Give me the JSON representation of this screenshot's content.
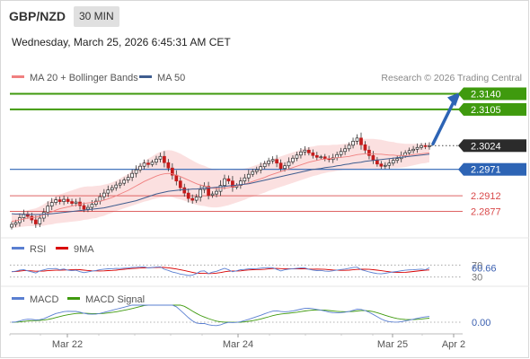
{
  "header": {
    "pair": "GBP/NZD",
    "timeframe": "30 MIN",
    "timestamp": "Wednesday, March 25, 2026 6:45:31 AM CET"
  },
  "credit": "Research © 2026 Trading Central",
  "legend": {
    "bollinger": "MA 20 + Bollinger Bands",
    "ma50": "MA 50",
    "rsi": "RSI",
    "rsi_ma": "9MA",
    "macd": "MACD",
    "macd_signal": "MACD Signal"
  },
  "colors": {
    "green": "#3f9a0e",
    "blue": "#2d64b5",
    "red": "#d9494a",
    "last": "#2b2b2b",
    "band": "#fadada",
    "ma20": "#f08080",
    "ma50": "#3f5d8f"
  },
  "chart_data": {
    "type": "candlestick",
    "price_range": [
      2.284,
      2.3155
    ],
    "levels": [
      {
        "label": "2.3140",
        "value": 2.314,
        "role": "resistance",
        "color": "#3f9a0e"
      },
      {
        "label": "2.3105",
        "value": 2.3105,
        "role": "resistance",
        "color": "#3f9a0e"
      },
      {
        "label": "2.3024",
        "value": 2.3024,
        "role": "last",
        "color": "#2b2b2b"
      },
      {
        "label": "2.2971",
        "value": 2.2971,
        "role": "pivot",
        "color": "#2d64b5"
      },
      {
        "label": "2.2912",
        "value": 2.2912,
        "role": "support",
        "color": "#d9494a"
      },
      {
        "label": "2.2877",
        "value": 2.2877,
        "role": "support",
        "color": "#d9494a"
      }
    ],
    "x_labels": [
      "Mar 22",
      "Mar 24",
      "Mar 25",
      "Apr 2"
    ],
    "rsi": {
      "value_label": "60.66",
      "value": 60.66,
      "levels": [
        "70",
        "30"
      ],
      "range": [
        20,
        80
      ]
    },
    "macd": {
      "value_label": "0.00",
      "value": 0.0
    },
    "closes": [
      2.2848,
      2.2852,
      2.2863,
      2.2871,
      2.2866,
      2.2858,
      2.2849,
      2.2862,
      2.2875,
      2.2889,
      2.2897,
      2.2903,
      2.2899,
      2.2904,
      2.2899,
      2.2895,
      2.2898,
      2.289,
      2.2882,
      2.2886,
      2.2893,
      2.29,
      2.291,
      2.2918,
      2.2925,
      2.293,
      2.2936,
      2.294,
      2.2947,
      2.2953,
      2.2962,
      2.297,
      2.2978,
      2.2985,
      2.2982,
      2.2987,
      2.2994,
      2.3,
      2.2986,
      2.2974,
      2.2958,
      2.2945,
      2.293,
      2.2918,
      2.2906,
      2.2902,
      2.2909,
      2.2926,
      2.2933,
      2.2913,
      2.2916,
      2.2922,
      2.2935,
      2.295,
      2.2945,
      2.2931,
      2.2935,
      2.2945,
      2.2952,
      2.296,
      2.2966,
      2.297,
      2.2977,
      2.2984,
      2.299,
      2.2993,
      2.2985,
      2.2973,
      2.2979,
      2.2988,
      2.2996,
      2.3003,
      2.301,
      2.3014,
      2.3008,
      2.3002,
      2.2998,
      2.2999,
      2.2995,
      2.2993,
      2.2997,
      2.3004,
      2.3011,
      2.3017,
      2.3025,
      2.3034,
      2.3041,
      2.3026,
      2.3014,
      2.3002,
      2.2992,
      2.2983,
      2.2978,
      2.298,
      2.2985,
      2.2991,
      2.2995,
      2.3002,
      2.3008,
      2.3013,
      2.3016,
      2.302,
      2.3024,
      2.3022,
      2.3024
    ],
    "ma20": [
      2.2855,
      2.2856,
      2.2858,
      2.286,
      2.2862,
      2.2863,
      2.2864,
      2.2866,
      2.2869,
      2.2873,
      2.2876,
      2.288,
      2.2883,
      2.2885,
      2.2887,
      2.2889,
      2.2891,
      2.2893,
      2.2895,
      2.2896,
      2.2897,
      2.2898,
      2.29,
      2.2902,
      2.2905,
      2.2908,
      2.2912,
      2.2916,
      2.292,
      2.2924,
      2.2929,
      2.2934,
      2.2939,
      2.2944,
      2.2948,
      2.2952,
      2.2956,
      2.2959,
      2.2961,
      2.2962,
      2.2961,
      2.2958,
      2.2955,
      2.2951,
      2.2947,
      2.2943,
      2.2939,
      2.2936,
      2.2934,
      2.2931,
      2.2929,
      2.2928,
      2.2928,
      2.2929,
      2.293,
      2.2932,
      2.2934,
      2.2936,
      2.2938,
      2.2941,
      2.2944,
      2.2947,
      2.295,
      2.2953,
      2.2957,
      2.296,
      2.2963,
      2.2966,
      2.2969,
      2.2972,
      2.2975,
      2.2978,
      2.2981,
      2.2984,
      2.2987,
      2.2989,
      2.2991,
      2.2993,
      2.2994,
      2.2995,
      2.2996,
      2.2997,
      2.2998,
      2.2999,
      2.3,
      2.3002,
      2.3004,
      2.3005,
      2.3006,
      2.3006,
      2.3006,
      2.3005,
      2.3005,
      2.3004,
      2.3003,
      2.3003,
      2.3002,
      2.3002,
      2.3002,
      2.3003,
      2.3004,
      2.3005,
      2.3006,
      2.3007,
      2.3008
    ],
    "ma50": [
      2.2872,
      2.2871,
      2.2871,
      2.287,
      2.287,
      2.287,
      2.287,
      2.287,
      2.2871,
      2.2871,
      2.2872,
      2.2873,
      2.2874,
      2.2875,
      2.2876,
      2.2877,
      2.2878,
      2.2879,
      2.288,
      2.2881,
      2.2882,
      2.2883,
      2.2884,
      2.2885,
      2.2887,
      2.2889,
      2.2891,
      2.2893,
      2.2895,
      2.2897,
      2.2899,
      2.2901,
      2.2904,
      2.2907,
      2.291,
      2.2913,
      2.2916,
      2.2918,
      2.292,
      2.2922,
      2.2923,
      2.2924,
      2.2925,
      2.2926,
      2.2926,
      2.2927,
      2.2927,
      2.2928,
      2.2929,
      2.2929,
      2.293,
      2.2931,
      2.2932,
      2.2933,
      2.2934,
      2.2935,
      2.2936,
      2.2937,
      2.2938,
      2.2939,
      2.2941,
      2.2943,
      2.2945,
      2.2947,
      2.2949,
      2.2951,
      2.2953,
      2.2955,
      2.2957,
      2.2959,
      2.2961,
      2.2963,
      2.2965,
      2.2967,
      2.2969,
      2.2971,
      2.2972,
      2.2973,
      2.2975,
      2.2976,
      2.2977,
      2.2979,
      2.298,
      2.2982,
      2.2983,
      2.2985,
      2.2986,
      2.2987,
      2.2989,
      2.299,
      2.2991,
      2.2992,
      2.2993,
      2.2994,
      2.2995,
      2.2996,
      2.2997,
      2.2998,
      2.2999,
      2.3,
      2.3001,
      2.3002,
      2.3003,
      2.3004,
      2.3005
    ],
    "band_width": [
      0.0015,
      0.0016,
      0.0016,
      0.0017,
      0.0018,
      0.0019,
      0.002,
      0.0022,
      0.0024,
      0.0026,
      0.0028,
      0.003,
      0.0032,
      0.0033,
      0.0034,
      0.0035,
      0.0036,
      0.0037,
      0.0037,
      0.0037,
      0.0036,
      0.0036,
      0.0035,
      0.0035,
      0.0034,
      0.0034,
      0.0034,
      0.0035,
      0.0036,
      0.0037,
      0.0039,
      0.0041,
      0.0043,
      0.0045,
      0.0047,
      0.0048,
      0.005,
      0.0051,
      0.0052,
      0.0052,
      0.0052,
      0.0052,
      0.0051,
      0.005,
      0.0049,
      0.0048,
      0.0047,
      0.0046,
      0.0045,
      0.0044,
      0.0043,
      0.0042,
      0.0041,
      0.004,
      0.0039,
      0.0038,
      0.0037,
      0.0036,
      0.0035,
      0.0034,
      0.0034,
      0.0034,
      0.0034,
      0.0034,
      0.0034,
      0.0034,
      0.0034,
      0.0034,
      0.0034,
      0.0034,
      0.0034,
      0.0034,
      0.0034,
      0.0034,
      0.0034,
      0.0033,
      0.0033,
      0.0032,
      0.0031,
      0.003,
      0.003,
      0.0029,
      0.0029,
      0.0029,
      0.003,
      0.0031,
      0.0032,
      0.0033,
      0.0033,
      0.0033,
      0.0033,
      0.0033,
      0.0032,
      0.0031,
      0.003,
      0.0029,
      0.0028,
      0.0027,
      0.0026,
      0.0025,
      0.0024,
      0.0023,
      0.0022,
      0.0022,
      0.0021
    ]
  }
}
